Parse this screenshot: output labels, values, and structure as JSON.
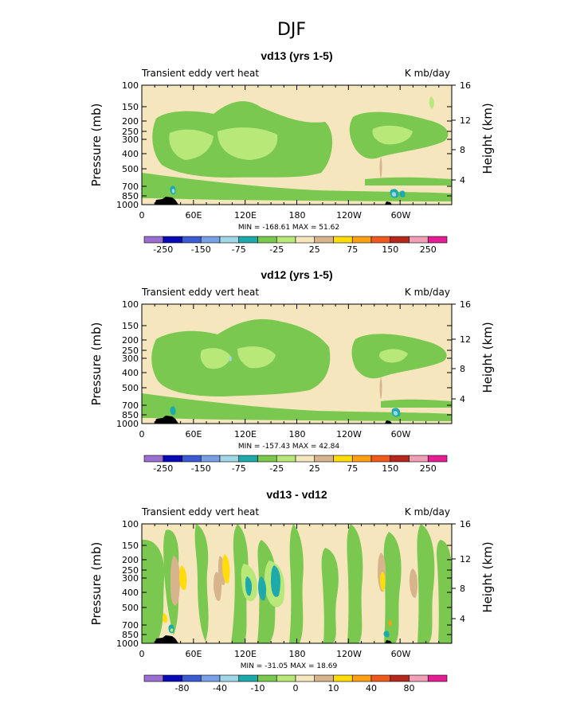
{
  "figure_title": "DJF",
  "chart_data": [
    {
      "type": "heatmap",
      "title": "vd13 (yrs 1-5)",
      "left_label": "Transient eddy vert heat",
      "units": "K mb/day",
      "ylabel": "Pressure (mb)",
      "y2label": "Height (km)",
      "x_ticks": [
        "0",
        "60E",
        "120E",
        "180",
        "120W",
        "60W"
      ],
      "y_ticks": [
        "100",
        "150",
        "200",
        "250",
        "300",
        "400",
        "500",
        "700",
        "850",
        "1000"
      ],
      "y2_ticks": [
        "16",
        "12",
        "8",
        "4"
      ],
      "stats": "MIN = -168.61   MAX =  51.62",
      "colorbar_ticks": [
        "-250",
        "-150",
        "-75",
        "-25",
        "25",
        "75",
        "150",
        "250"
      ],
      "background_range": "-25 to 25",
      "dominant_regions": "-25 to -75 bands over 0-150E and 110W-0, 200-700 mb"
    },
    {
      "type": "heatmap",
      "title": "vd12 (yrs 1-5)",
      "left_label": "Transient eddy vert heat",
      "units": "K mb/day",
      "ylabel": "Pressure (mb)",
      "y2label": "Height (km)",
      "x_ticks": [
        "0",
        "60E",
        "120E",
        "180",
        "120W",
        "60W"
      ],
      "y_ticks": [
        "100",
        "150",
        "200",
        "250",
        "300",
        "400",
        "500",
        "700",
        "850",
        "1000"
      ],
      "y2_ticks": [
        "16",
        "12",
        "8",
        "4"
      ],
      "stats": "MIN = -157.43   MAX =  42.84",
      "colorbar_ticks": [
        "-250",
        "-150",
        "-75",
        "-25",
        "25",
        "75",
        "150",
        "250"
      ],
      "background_range": "-25 to 25",
      "dominant_regions": "-25 to -75 bands over 0-150E and 110W-0, 200-700 mb"
    },
    {
      "type": "heatmap",
      "title": "vd13 - vd12",
      "left_label": "Transient eddy vert heat",
      "units": "K mb/day",
      "ylabel": "Pressure (mb)",
      "y2label": "Height (km)",
      "x_ticks": [
        "0",
        "60E",
        "120E",
        "180",
        "120W",
        "60W"
      ],
      "y_ticks": [
        "100",
        "150",
        "200",
        "250",
        "300",
        "400",
        "500",
        "700",
        "850",
        "1000"
      ],
      "y2_ticks": [
        "16",
        "12",
        "8",
        "4"
      ],
      "stats": "MIN = -31.05   MAX =  18.69",
      "colorbar_ticks": [
        "-80",
        "-40",
        "-10",
        "0",
        "10",
        "40",
        "80"
      ],
      "background_range": "-10 to 10",
      "dominant_regions": "streaks of -10 to -40 near 120E-140E and 50W, small positive patches near 30E and 60W"
    }
  ],
  "colors": {
    "palette": [
      "#9b6fd0",
      "#0a0ab4",
      "#3c5ad2",
      "#78a0e6",
      "#a0d7e6",
      "#1eaaaa",
      "#7ac850",
      "#b8e878",
      "#f5e6be",
      "#d7b48c",
      "#ffdc0a",
      "#ffa014",
      "#f05a1e",
      "#b4281e",
      "#f0a0b4",
      "#e61e96"
    ],
    "bg_neutral": "#f5e6be",
    "light_green": "#b8e878",
    "mid_green": "#7ac850",
    "teal": "#1eaaaa",
    "light_blue": "#a0d7e6",
    "tan": "#d7b48c",
    "yellow": "#ffdc0a",
    "orange": "#ffa014"
  }
}
